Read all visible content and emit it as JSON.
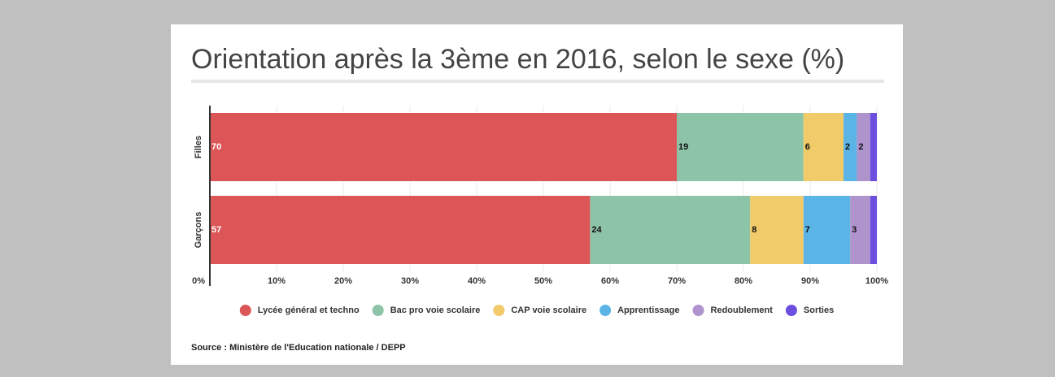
{
  "chart_data": {
    "type": "stacked-barh",
    "title": "Orientation après la 3ème en 2016, selon le sexe (%)",
    "source": "Source : Ministère de l'Education nationale / DEPP",
    "categories": [
      "Filles",
      "Garçons"
    ],
    "series": [
      {
        "name": "Lycée général et techno",
        "color": "#dc5557",
        "values": [
          70,
          57
        ]
      },
      {
        "name": "Bac pro voie scolaire",
        "color": "#8dc3a7",
        "values": [
          19,
          24
        ]
      },
      {
        "name": "CAP voie scolaire",
        "color": "#f1cb69",
        "values": [
          6,
          8
        ]
      },
      {
        "name": "Apprentissage",
        "color": "#5ab4e5",
        "values": [
          2,
          7
        ]
      },
      {
        "name": "Redoublement",
        "color": "#ae93cc",
        "values": [
          2,
          3
        ]
      },
      {
        "name": "Sorties",
        "color": "#6c4fdf",
        "values": [
          1,
          1
        ]
      }
    ],
    "xlim": [
      0,
      100
    ],
    "xticks": [
      {
        "value": 0,
        "label": "0%"
      },
      {
        "value": 10,
        "label": "10%"
      },
      {
        "value": 20,
        "label": "20%"
      },
      {
        "value": 30,
        "label": "30%"
      },
      {
        "value": 40,
        "label": "40%"
      },
      {
        "value": 50,
        "label": "50%"
      },
      {
        "value": 60,
        "label": "60%"
      },
      {
        "value": 70,
        "label": "70%"
      },
      {
        "value": 80,
        "label": "80%"
      },
      {
        "value": 90,
        "label": "90%"
      },
      {
        "value": 100,
        "label": "100%"
      }
    ],
    "grid": true,
    "legend": "bottom"
  }
}
